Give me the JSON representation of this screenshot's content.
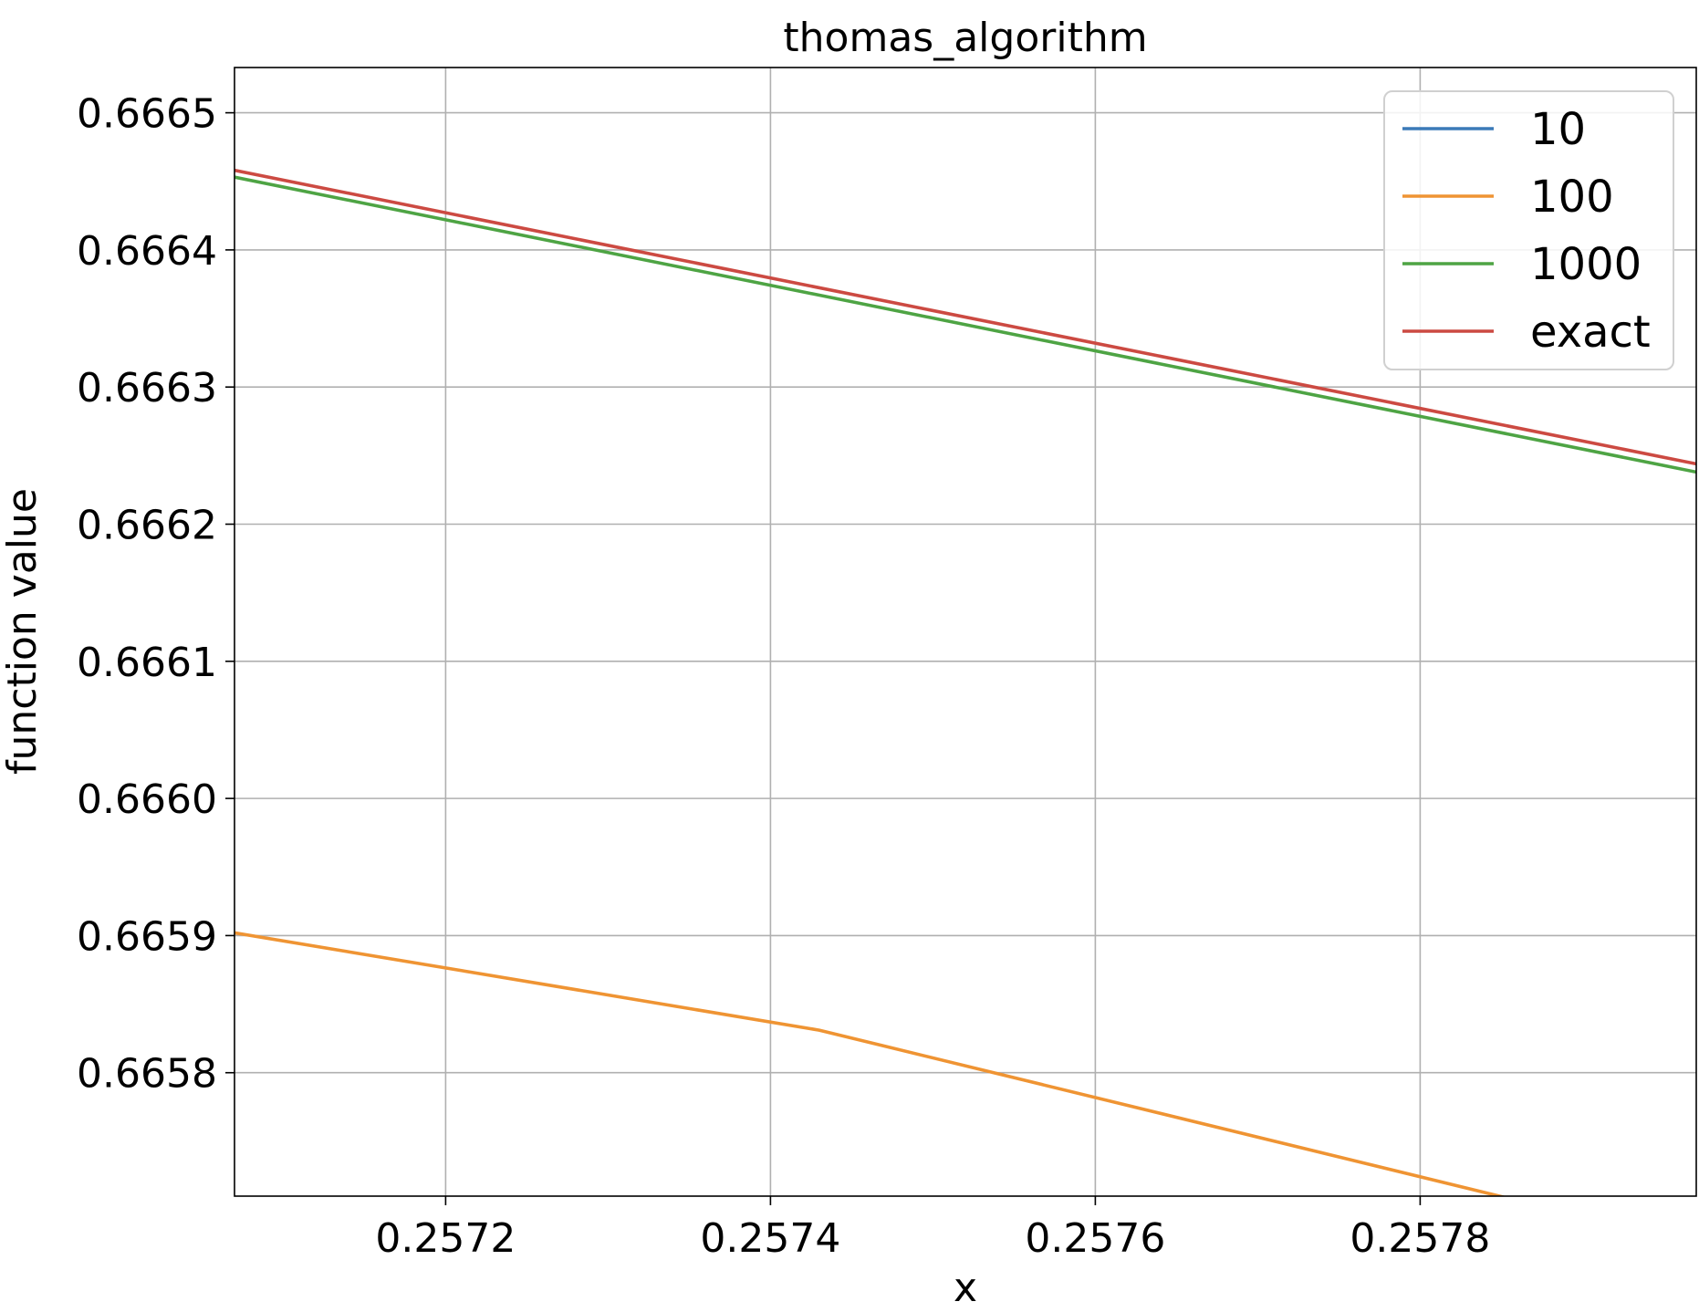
{
  "chart_data": {
    "type": "line",
    "title": "thomas_algorithm",
    "xlabel": "x",
    "ylabel": "function value",
    "xlim": [
      0.25707,
      0.25797
    ],
    "ylim": [
      0.66571,
      0.666533
    ],
    "xticks": [
      0.2572,
      0.2574,
      0.2576,
      0.2578
    ],
    "xtick_labels": [
      "0.2572",
      "0.2574",
      "0.2576",
      "0.2578"
    ],
    "yticks": [
      0.6658,
      0.6659,
      0.666,
      0.6661,
      0.6662,
      0.6663,
      0.6664,
      0.6665
    ],
    "ytick_labels": [
      "0.6658",
      "0.6659",
      "0.6660",
      "0.6661",
      "0.6662",
      "0.6663",
      "0.6664",
      "0.6665"
    ],
    "grid": true,
    "legend_position": "top-right",
    "series": [
      {
        "name": "10",
        "color": "#3b7ab8",
        "x": [],
        "y": []
      },
      {
        "name": "100",
        "color": "#ef9433",
        "x": [
          0.25707,
          0.25743,
          0.25797
        ],
        "y": [
          0.665902,
          0.665831,
          0.665675
        ]
      },
      {
        "name": "1000",
        "color": "#4ea444",
        "x": [
          0.25707,
          0.25797
        ],
        "y": [
          0.666453,
          0.666238
        ]
      },
      {
        "name": "exact",
        "color": "#cc4a42",
        "x": [
          0.25707,
          0.25797
        ],
        "y": [
          0.666458,
          0.666244
        ]
      }
    ]
  }
}
